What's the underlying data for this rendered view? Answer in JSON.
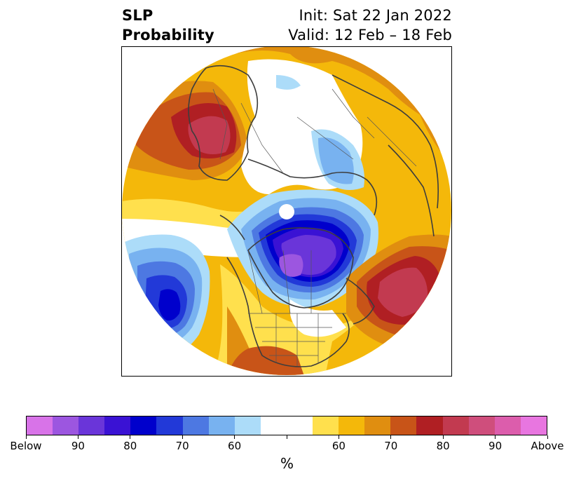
{
  "title": {
    "left_line1": "SLP",
    "left_line2": "Probability",
    "right_line1": "Init: Sat 22 Jan 2022",
    "right_line2": "Valid: 12 Feb – 18 Feb"
  },
  "colorbar": {
    "colors": [
      "#d873e8",
      "#9c56e0",
      "#6a35d9",
      "#3a12d4",
      "#0000cc",
      "#2239d8",
      "#4d78e2",
      "#78b2f0",
      "#acdcf9",
      "#ffffff",
      "#ffffff",
      "#ffe04d",
      "#f4b80a",
      "#e08e10",
      "#c85418",
      "#b01f23",
      "#c23a50",
      "#cf4e7c",
      "#dc5dac",
      "#e876e0"
    ],
    "tick_labels": [
      "Below",
      "90",
      "80",
      "70",
      "60",
      "",
      "60",
      "70",
      "80",
      "90",
      "Above"
    ],
    "label": "%"
  },
  "map": {
    "projection": "north-polar-stereographic",
    "features": [
      "coastlines",
      "country-borders",
      "us-state-borders"
    ],
    "anomalies": [
      {
        "region": "Northeastern Europe / Western Russia",
        "category": "Above",
        "level": "80-90"
      },
      {
        "region": "Gulf of Alaska / North Pacific",
        "category": "Below",
        "level": "80-90"
      },
      {
        "region": "Canadian Arctic Archipelago / Hudson Bay",
        "category": "Below",
        "level": "90-Below"
      },
      {
        "region": "North Atlantic",
        "category": "Above",
        "level": "80-90"
      },
      {
        "region": "Central Siberia",
        "category": "Below",
        "level": "60-70"
      }
    ]
  }
}
